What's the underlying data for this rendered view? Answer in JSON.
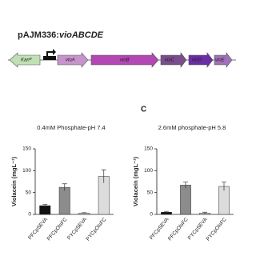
{
  "header": {
    "title_plasmid": "pAJM336:",
    "title_genes": "vioABCDE"
  },
  "diagram": {
    "genes": [
      "Kanᴿ",
      "vioA",
      "vioB",
      "vioC",
      "vioD",
      "vioE"
    ]
  },
  "panel_label": "C",
  "chart_data": [
    {
      "type": "bar",
      "title": "0.4mM Phosphate-pH 7.4",
      "y_label": "Violacein (mgL⁻¹)",
      "categories": [
        "PFCpSEVA",
        "PFCpOlsFC",
        "PYCpSEVA",
        "PYCpOlsFC"
      ],
      "values": [
        20,
        62,
        3,
        87
      ],
      "errors": [
        3,
        8,
        1,
        15
      ],
      "colors": [
        "#111111",
        "#8c8c8c",
        "#cfcfcf",
        "#dcdcdc"
      ],
      "ylim": [
        0,
        150
      ],
      "yticks": [
        0,
        50,
        100,
        150
      ]
    },
    {
      "type": "bar",
      "title": "2.6mM phosphate-pH 5.8",
      "y_label": "Violacein (mgL⁻¹)",
      "categories": [
        "PFCpSEVA",
        "PFCpOlsFC",
        "PYCpSEVA",
        "PYCpOlsFC"
      ],
      "values": [
        5,
        67,
        3,
        64
      ],
      "errors": [
        2,
        7,
        2,
        10
      ],
      "colors": [
        "#111111",
        "#8c8c8c",
        "#cfcfcf",
        "#dcdcdc"
      ],
      "ylim": [
        0,
        150
      ],
      "yticks": [
        0,
        50,
        100,
        150
      ]
    }
  ]
}
